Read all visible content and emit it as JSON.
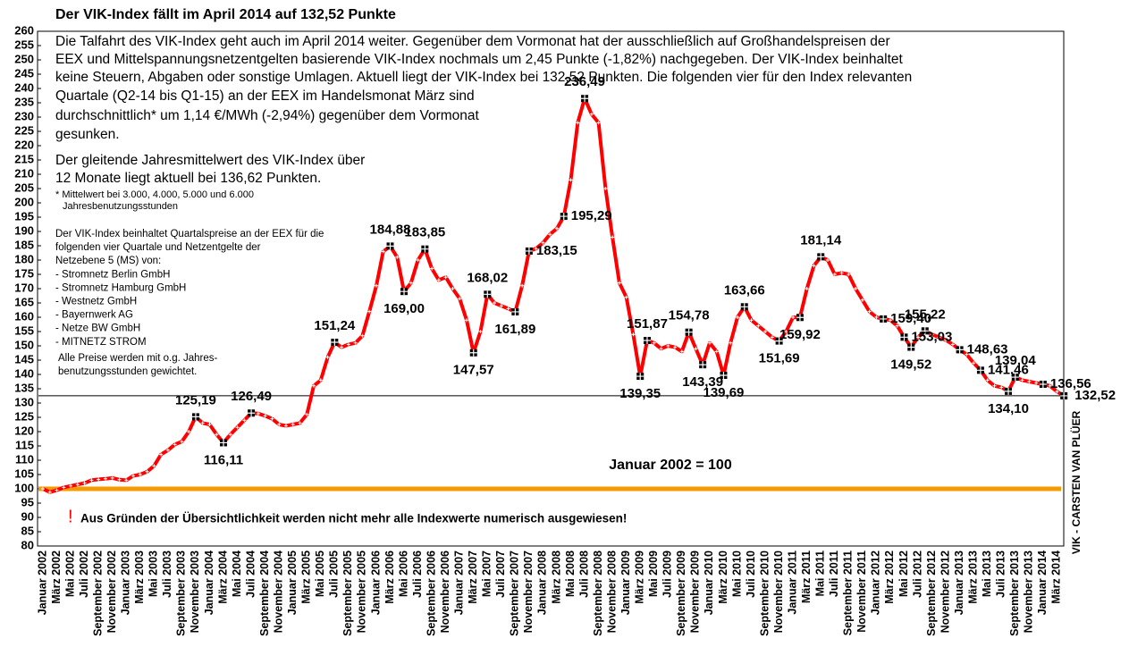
{
  "chart_data": {
    "type": "line",
    "title": "Der VIK-Index fällt im April 2014 auf 132,52 Punkte",
    "intro_lines": [
      "Die Talfahrt des VIK-Index geht auch im April 2014 weiter. Gegenüber dem Vormonat hat der ausschließlich auf Großhandelspreisen der",
      "EEX und Mittelspannungsnetzentgelten basierende VIK-Index nochmals um 2,45 Punkte (-1,82%) nachgegeben. Der VIK-Index beinhaltet",
      "keine Steuern, Abgaben oder sonstige Umlagen. Aktuell liegt der VIK-Index  bei 132,52 Punkten. Die folgenden vier für den Index relevanten",
      "Quartale (Q2-14 bis Q1-15) an der EEX im Handelsmonat März sind",
      "durchschnittlich* um 1,14 €/MWh (-2,94%) gegenüber dem Vormonat",
      "gesunken."
    ],
    "average_lines": [
      "Der gleitende Jahresmittelwert des VIK-Index über",
      "12 Monate liegt aktuell bei 136,62 Punkten."
    ],
    "footnote_lines": [
      "* Mittelwert bei 3.000, 4.000, 5.000 und 6.000",
      "Jahresbenutzungsstunden"
    ],
    "note_lines": [
      "Der VIK-Index beinhaltet Quartalspreise an der EEX für die",
      "folgenden vier Quartale und  Netzentgelte der",
      "Netzebene 5 (MS) von:",
      "- Stromnetz Berlin GmbH",
      "- Stromnetz Hamburg GmbH",
      "- Westnetz GmbH",
      "- Bayernwerk AG",
      "- Netze BW GmbH",
      "- MITNETZ STROM",
      "Alle  Preise werden mit o.g. Jahres-",
      "benutzungsstunden gewichtet."
    ],
    "warning_mark": "!",
    "warning": "Aus Gründen der Übersichtlichkeit werden nicht mehr alle Indexwerte numerisch ausgewiesen!",
    "side_label": "VIK - CARSTEN VAN PLÜER",
    "reference_line": {
      "value": 100,
      "label": "Januar 2002 = 100",
      "color": "#f59a00"
    },
    "ylim": [
      80,
      260
    ],
    "yticks": [
      80,
      85,
      90,
      95,
      100,
      105,
      110,
      115,
      120,
      125,
      130,
      135,
      140,
      145,
      150,
      155,
      160,
      165,
      170,
      175,
      180,
      185,
      190,
      195,
      200,
      205,
      210,
      215,
      220,
      225,
      230,
      235,
      240,
      245,
      250,
      255,
      260
    ],
    "categories": [
      "Januar 2002",
      null,
      "März 2002",
      null,
      "Mai 2002",
      null,
      "Juli 2002",
      null,
      "September 2002",
      null,
      "November 2002",
      null,
      "Januar 2003",
      null,
      "März 2003",
      null,
      "Mai 2003",
      null,
      "Juli 2003",
      null,
      "September 2003",
      null,
      "November 2003",
      null,
      "Januar 2004",
      null,
      "März 2004",
      null,
      "Mai 2004",
      null,
      "Juli 2004",
      null,
      "September 2004",
      null,
      "November 2004",
      null,
      "Januar 2005",
      null,
      "März 2005",
      null,
      "Mai 2005",
      null,
      "Juli 2005",
      null,
      "September 2005",
      null,
      "November 2005",
      null,
      "Januar 2006",
      null,
      "März 2006",
      null,
      "Mai 2006",
      null,
      "Juli 2006",
      null,
      "September 2006",
      null,
      "November 2006",
      null,
      "Januar 2007",
      null,
      "März 2007",
      null,
      "Mai 2007",
      null,
      "Juli 2007",
      null,
      "September 2007",
      null,
      "November 2007",
      null,
      "Januar 2008",
      null,
      "März 2008",
      null,
      "Mai 2008",
      null,
      "Juli 2008",
      null,
      "September 2008",
      null,
      "November 2008",
      null,
      "Januar 2009",
      null,
      "März 2009",
      null,
      "Mai 2009",
      null,
      "Juli 2009",
      null,
      "September 2009",
      null,
      "November 2009",
      null,
      "Januar 2010",
      null,
      "März 2010",
      null,
      "Mai 2010",
      null,
      "Juli 2010",
      null,
      "September 2010",
      null,
      "November 2010",
      null,
      "Januar 2011",
      null,
      "März 2011",
      null,
      "Mai 2011",
      null,
      "Juli 2011",
      null,
      "September 2011",
      null,
      "November 2011",
      null,
      "Januar 2012",
      null,
      "März 2012",
      null,
      "Mai 2012",
      null,
      "Juli 2012",
      null,
      "September 2012",
      null,
      "November 2012",
      null,
      "Januar 2013",
      null,
      "März 2013",
      null,
      "Mai 2013",
      null,
      "Juli 2013",
      null,
      "September 2013",
      null,
      "November 2013",
      null,
      "Januar 2014",
      null,
      "März 2014",
      null
    ],
    "series": [
      {
        "name": "VIK-Index",
        "color": "#ff0000",
        "values": [
          100,
          98.8,
          99.5,
          100.5,
          101,
          101.5,
          102,
          103,
          103.3,
          103.5,
          103.8,
          103.2,
          103,
          104.5,
          105,
          106,
          108,
          112,
          113.5,
          115.5,
          116.5,
          120,
          125.19,
          123,
          122.5,
          119,
          116.11,
          119,
          121.5,
          124,
          126.49,
          126.3,
          125.5,
          124.5,
          122.5,
          122,
          122.5,
          123,
          126,
          136,
          138,
          146,
          151.24,
          149.5,
          150.5,
          151,
          153.5,
          162,
          171,
          183,
          184.88,
          181,
          169,
          172,
          180,
          183.85,
          177,
          173,
          174,
          170,
          166.5,
          159,
          147.57,
          155,
          168.02,
          165,
          164,
          163,
          161.89,
          171,
          183.15,
          184,
          186,
          189,
          191,
          195.29,
          208,
          228,
          236.49,
          231,
          228,
          205,
          188,
          172,
          167,
          154,
          139.35,
          151.87,
          151,
          149,
          150,
          149.5,
          148,
          154.78,
          149,
          143.39,
          151,
          148,
          139.69,
          151,
          160,
          163.66,
          159,
          157,
          155,
          153,
          151.69,
          155,
          160,
          159.92,
          170,
          178,
          181.14,
          180,
          175,
          175.5,
          175,
          170,
          166,
          162,
          160,
          159.4,
          159,
          157,
          153.03,
          149.52,
          153,
          155.22,
          154,
          153,
          152,
          150.5,
          148.63,
          147,
          144,
          141.46,
          138,
          136,
          135.5,
          134.1,
          139.04,
          138,
          137.5,
          137,
          136.56,
          136,
          134,
          132.52
        ],
        "value_labels": [
          null,
          null,
          null,
          null,
          null,
          null,
          null,
          null,
          null,
          null,
          null,
          null,
          null,
          null,
          null,
          null,
          null,
          null,
          null,
          null,
          null,
          null,
          "125,19",
          null,
          null,
          null,
          "116,11",
          null,
          null,
          null,
          "126,49",
          null,
          null,
          null,
          null,
          null,
          null,
          null,
          null,
          null,
          null,
          null,
          "151,24",
          null,
          null,
          null,
          null,
          null,
          null,
          null,
          "184,88",
          null,
          "169,00",
          null,
          null,
          "183,85",
          null,
          null,
          null,
          null,
          null,
          null,
          "147,57",
          null,
          "168,02",
          null,
          null,
          null,
          "161,89",
          null,
          "183,15",
          null,
          null,
          null,
          null,
          "195,29",
          null,
          null,
          "236,49",
          null,
          null,
          null,
          null,
          null,
          null,
          null,
          "139,35",
          "151,87",
          null,
          null,
          null,
          null,
          null,
          "154,78",
          null,
          "143,39",
          null,
          null,
          "139,69",
          null,
          null,
          "163,66",
          null,
          null,
          null,
          null,
          "151,69",
          null,
          null,
          "159,92",
          null,
          null,
          "181,14",
          null,
          null,
          null,
          null,
          null,
          null,
          null,
          null,
          "159,40",
          null,
          null,
          "153,03",
          "149,52",
          null,
          "155,22",
          null,
          null,
          null,
          null,
          "148,63",
          null,
          null,
          "141,46",
          null,
          null,
          null,
          "134,10",
          "139,04",
          null,
          null,
          null,
          "136,56",
          null,
          null,
          "132,52"
        ]
      }
    ]
  }
}
